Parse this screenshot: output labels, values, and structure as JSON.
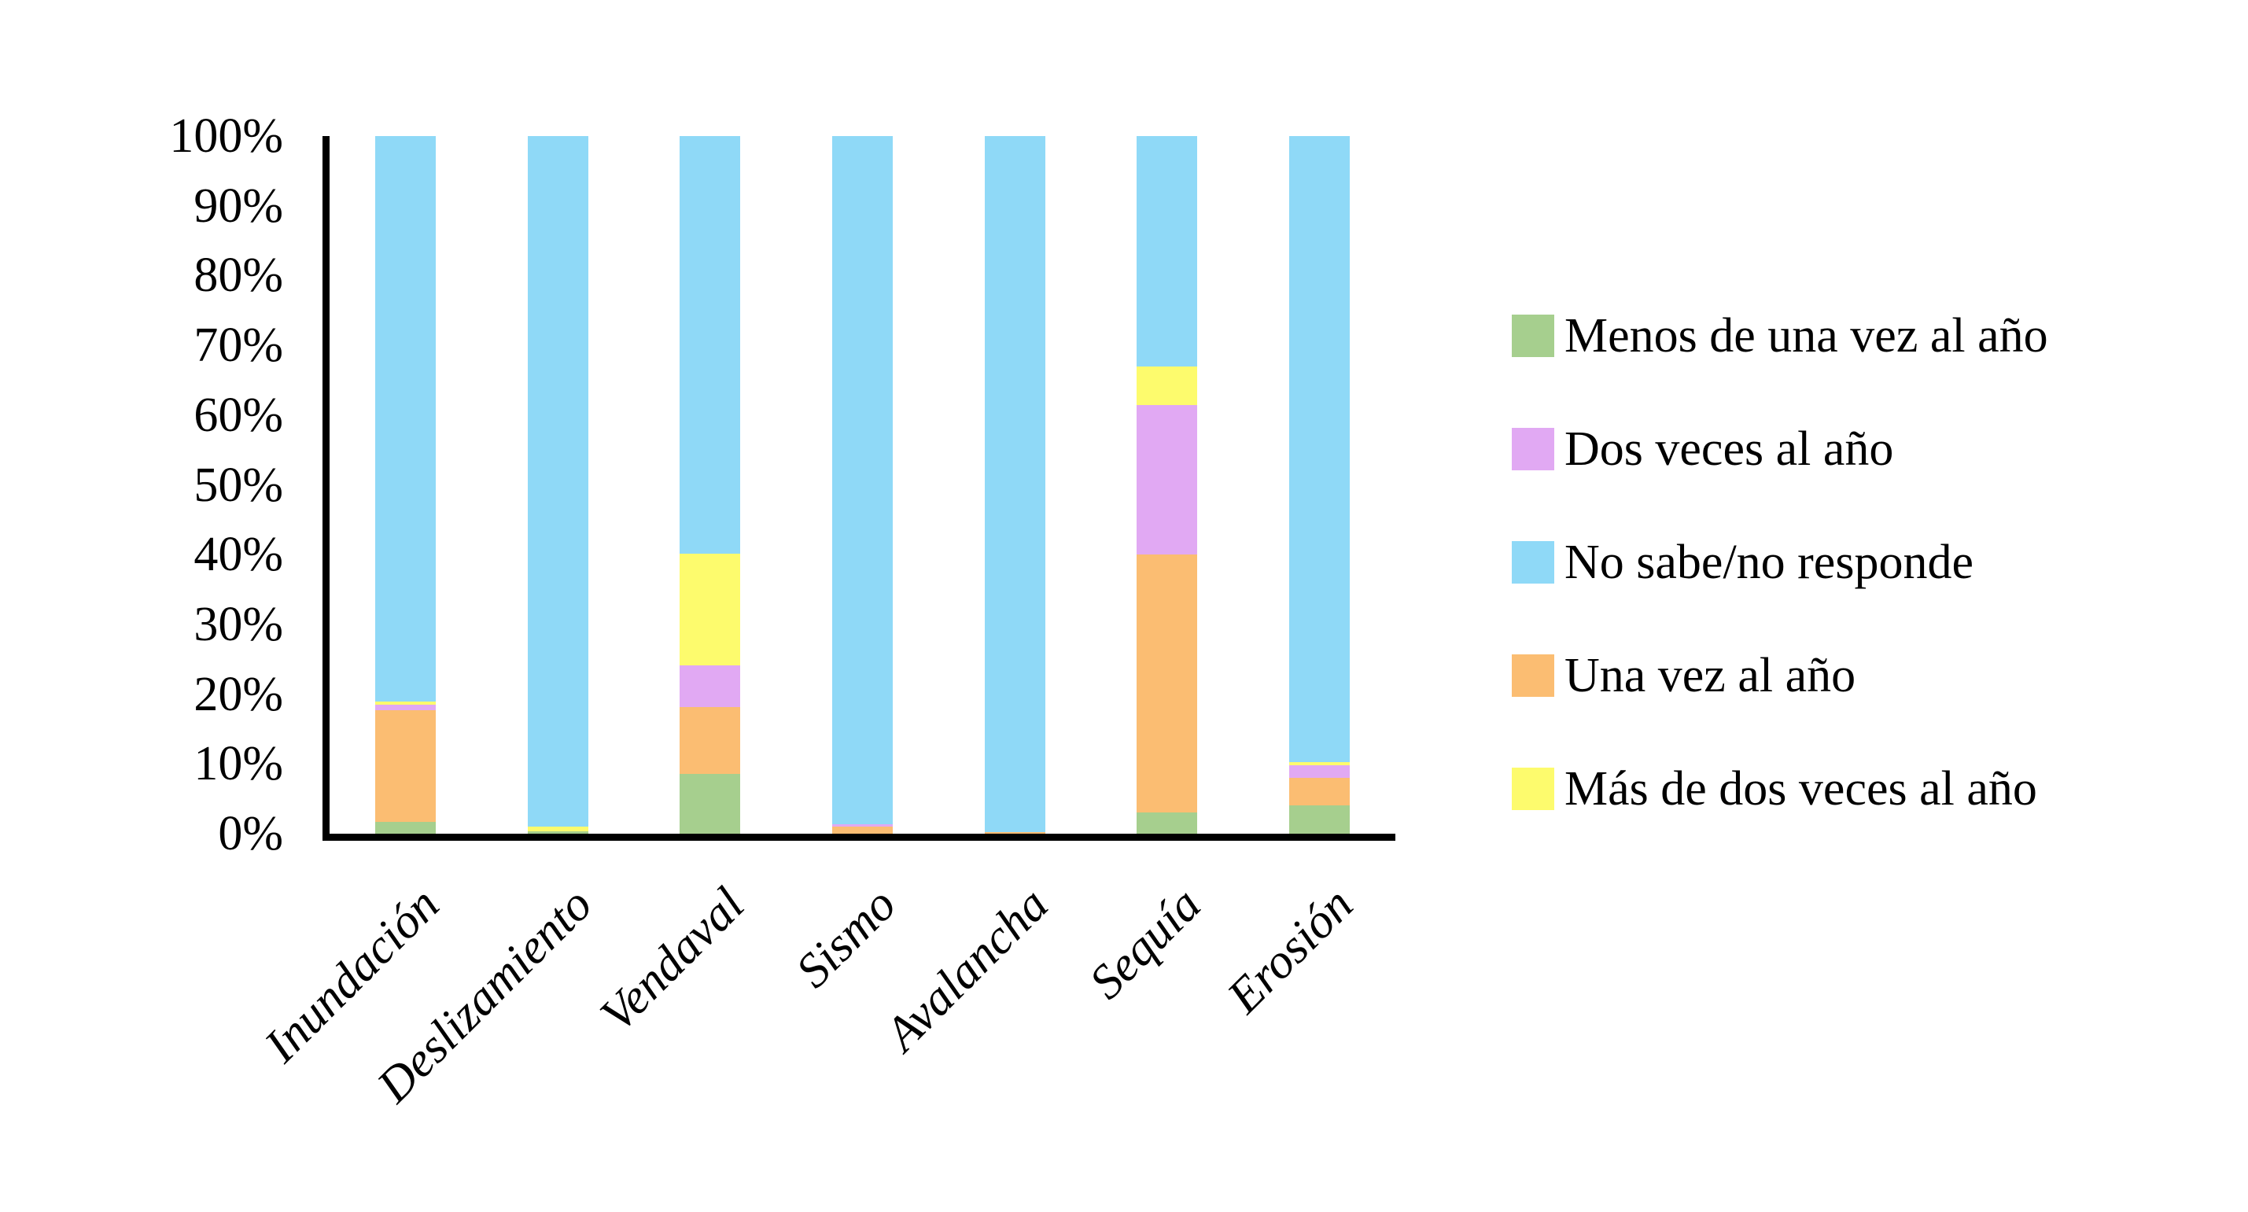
{
  "chart_data": {
    "type": "bar",
    "stacked": "percent",
    "title": "",
    "xlabel": "",
    "ylabel": "",
    "grid": false,
    "legend_position": "right",
    "categories": [
      "Inundación",
      "Deslizamiento",
      "Vendaval",
      "Sismo",
      "Avalancha",
      "Sequía",
      "Erosión"
    ],
    "series": [
      {
        "name": "Menos de una vez al año",
        "color": "#A6CF8E",
        "values": [
          1.7,
          0.3,
          8.6,
          0,
          0,
          3.0,
          4.1
        ]
      },
      {
        "name": "Una vez al año",
        "color": "#FBBD72",
        "values": [
          16.0,
          0,
          9.5,
          1.0,
          0.2,
          37.0,
          3.9
        ]
      },
      {
        "name": "Dos veces al año",
        "color": "#E1A9F3",
        "values": [
          0.8,
          0,
          6.0,
          0.4,
          0,
          21.4,
          1.8
        ]
      },
      {
        "name": "Más de dos veces al año",
        "color": "#FDFB6D",
        "values": [
          0.5,
          0.7,
          16.0,
          0,
          0,
          5.6,
          0.5
        ]
      },
      {
        "name": "No sabe/no responde",
        "color": "#8FD9F7",
        "values": [
          81.0,
          99.0,
          59.9,
          98.6,
          99.8,
          33.0,
          89.7
        ]
      }
    ],
    "legend_order": [
      0,
      2,
      4,
      1,
      3
    ],
    "y_axis": {
      "min": 0,
      "max": 100,
      "ticks_top_to_bottom": [
        "100%",
        "90%",
        "80%",
        "70%",
        "60%",
        "50%",
        "40%",
        "30%",
        "20%",
        "10%",
        "0%"
      ]
    },
    "axis_color": "#000000",
    "background_color": "#FFFFFF",
    "text_color": "#000000"
  }
}
